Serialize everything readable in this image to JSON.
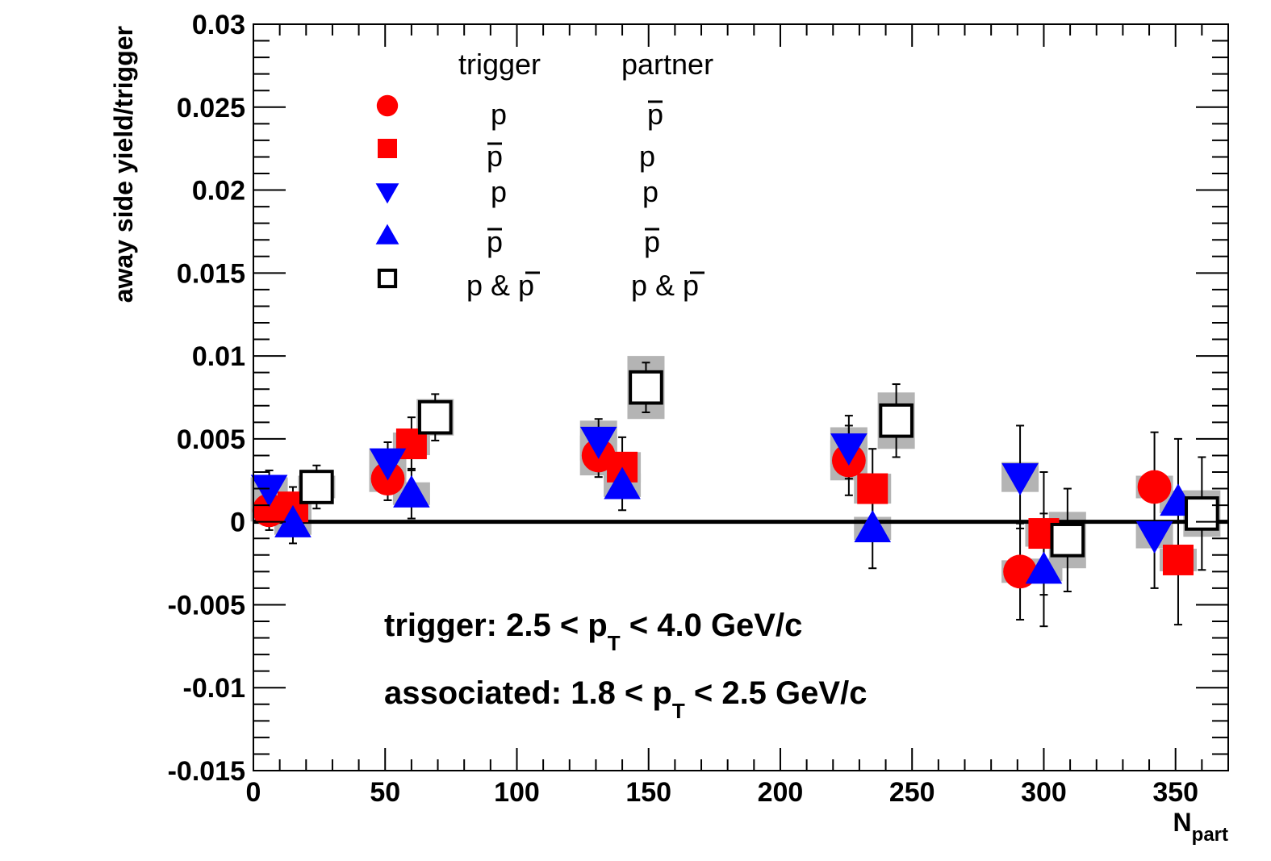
{
  "chart_data": {
    "type": "scatter",
    "xlabel": "N",
    "xlabel_sub": "part",
    "ylabel": "away side yield/trigger",
    "xlim": [
      0,
      370
    ],
    "ylim": [
      -0.015,
      0.03
    ],
    "x_ticks": [
      0,
      50,
      100,
      150,
      200,
      250,
      300,
      350
    ],
    "y_ticks": [
      0.03,
      0.025,
      0.02,
      0.015,
      0.01,
      0.005,
      0,
      -0.005,
      -0.01,
      -0.015
    ],
    "x_tick_labels": [
      "0",
      "50",
      "100",
      "150",
      "200",
      "250",
      "300",
      "350"
    ],
    "y_tick_labels": [
      "0.03",
      "0.025",
      "0.02",
      "0.015",
      "0.01",
      "0.005",
      "0",
      "-0.005",
      "-0.01",
      "-0.015"
    ],
    "zero_line": true,
    "legend_headers": {
      "trigger": "trigger",
      "partner": "partner"
    },
    "series": [
      {
        "trigger": "p",
        "trigger_bar": false,
        "partner": "p",
        "partner_bar": true,
        "marker": "circle",
        "color": "#ff0000",
        "filled": true,
        "points": [
          {
            "x": 6,
            "y": 0.0007,
            "err": 0.0012,
            "sys": 0.0002
          },
          {
            "x": 51,
            "y": 0.0026,
            "err": 0.0013,
            "sys": 0.0008
          },
          {
            "x": 131,
            "y": 0.004,
            "err": 0.0013,
            "sys": 0.0012
          },
          {
            "x": 226,
            "y": 0.0037,
            "err": 0.0021,
            "sys": 0.0012
          },
          {
            "x": 291,
            "y": -0.003,
            "err": 0.0029,
            "sys": 0.0006
          },
          {
            "x": 342,
            "y": 0.0021,
            "err": 0.0033,
            "sys": 0.0006
          }
        ]
      },
      {
        "trigger": "p",
        "trigger_bar": true,
        "partner": "p",
        "partner_bar": false,
        "marker": "square",
        "color": "#ff0000",
        "filled": true,
        "points": [
          {
            "x": 15,
            "y": 0.0009,
            "err": 0.0012,
            "sys": 0.0003
          },
          {
            "x": 60,
            "y": 0.0047,
            "err": 0.0016,
            "sys": 0.0006
          },
          {
            "x": 140,
            "y": 0.0033,
            "err": 0.0018,
            "sys": 0.0009
          },
          {
            "x": 235,
            "y": 0.002,
            "err": 0.0024,
            "sys": 0.0009
          },
          {
            "x": 300,
            "y": -0.0007,
            "err": 0.0037,
            "sys": 0.0008
          },
          {
            "x": 351,
            "y": -0.0023,
            "err": 0.0039,
            "sys": 0.0006
          }
        ]
      },
      {
        "trigger": "p",
        "trigger_bar": false,
        "partner": "p",
        "partner_bar": false,
        "marker": "triangle-down",
        "color": "#0000ff",
        "filled": true,
        "points": [
          {
            "x": 6,
            "y": 0.002,
            "err": 0.0011,
            "sys": 0.0002
          },
          {
            "x": 51,
            "y": 0.0036,
            "err": 0.0012,
            "sys": 0.0008
          },
          {
            "x": 131,
            "y": 0.0049,
            "err": 0.0013,
            "sys": 0.0012
          },
          {
            "x": 226,
            "y": 0.0045,
            "err": 0.0019,
            "sys": 0.0012
          },
          {
            "x": 291,
            "y": 0.0027,
            "err": 0.0031,
            "sys": 0.0009
          },
          {
            "x": 342,
            "y": -0.0008,
            "err": 0.0032,
            "sys": 0.0008
          }
        ]
      },
      {
        "trigger": "p",
        "trigger_bar": true,
        "partner": "p",
        "partner_bar": true,
        "marker": "triangle-up",
        "color": "#0000ff",
        "filled": true,
        "points": [
          {
            "x": 15,
            "y": -0.0001,
            "err": 0.0012,
            "sys": 0.0002
          },
          {
            "x": 60,
            "y": 0.0017,
            "err": 0.0015,
            "sys": 0.0004
          },
          {
            "x": 140,
            "y": 0.0022,
            "err": 0.0015,
            "sys": 0.0007
          },
          {
            "x": 235,
            "y": -0.0004,
            "err": 0.0024,
            "sys": 0.0007
          },
          {
            "x": 300,
            "y": -0.0029,
            "err": 0.0034,
            "sys": 0.0005
          },
          {
            "x": 351,
            "y": 0.0012,
            "err": 0.0038,
            "sys": 0.0006
          }
        ]
      },
      {
        "trigger": "p & p",
        "trigger_bar": true,
        "partner": "p & p",
        "partner_bar": true,
        "marker": "square",
        "color": "#000000",
        "filled": false,
        "points": [
          {
            "x": 24,
            "y": 0.0021,
            "err": 0.0013,
            "sys": 0.0004
          },
          {
            "x": 69,
            "y": 0.0063,
            "err": 0.0014,
            "sys": 0.0011
          },
          {
            "x": 149,
            "y": 0.0081,
            "err": 0.0015,
            "sys": 0.0019
          },
          {
            "x": 244,
            "y": 0.0061,
            "err": 0.0022,
            "sys": 0.0017
          },
          {
            "x": 309,
            "y": -0.0011,
            "err": 0.0031,
            "sys": 0.0017
          },
          {
            "x": 360,
            "y": 0.0005,
            "err": 0.0034,
            "sys": 0.0014
          }
        ]
      }
    ],
    "annotations": [
      {
        "pre": "trigger: 2.5 < p",
        "sub": "T",
        "post": " < 4.0 GeV/c"
      },
      {
        "pre": "associated: 1.8 < p",
        "sub": "T",
        "post": " < 2.5 GeV/c"
      }
    ]
  }
}
